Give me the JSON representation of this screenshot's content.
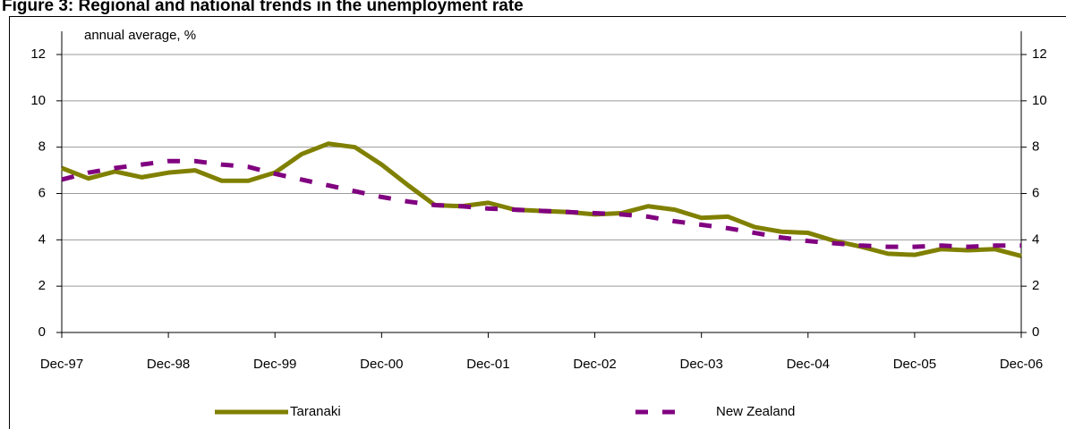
{
  "chart_data": {
    "type": "line",
    "title": "Figure 3: Regional and national trends in the unemployment rate",
    "y_label": "annual average, %",
    "categories": [
      "Dec-97",
      null,
      null,
      null,
      "Dec-98",
      null,
      null,
      null,
      "Dec-99",
      null,
      null,
      null,
      "Dec-00",
      null,
      null,
      null,
      "Dec-01",
      null,
      null,
      null,
      "Dec-02",
      null,
      null,
      null,
      "Dec-03",
      null,
      null,
      null,
      "Dec-04",
      null,
      null,
      null,
      "Dec-05",
      null,
      null,
      null,
      "Dec-06"
    ],
    "series": [
      {
        "name": "Taranaki",
        "color": "#808000",
        "dash": false,
        "values": [
          7.1,
          6.65,
          6.95,
          6.7,
          6.9,
          7.0,
          6.55,
          6.55,
          6.9,
          7.7,
          8.15,
          8.0,
          7.25,
          6.35,
          5.5,
          5.45,
          5.6,
          5.3,
          5.25,
          5.2,
          5.1,
          5.15,
          5.45,
          5.3,
          4.95,
          5.0,
          4.55,
          4.35,
          4.3,
          3.95,
          3.7,
          3.4,
          3.35,
          3.6,
          3.55,
          3.6,
          3.3
        ]
      },
      {
        "name": "New Zealand",
        "color": "#800080",
        "dash": true,
        "values": [
          6.6,
          6.9,
          7.1,
          7.25,
          7.4,
          7.4,
          7.25,
          7.15,
          6.85,
          6.6,
          6.35,
          6.1,
          5.85,
          5.65,
          5.5,
          5.45,
          5.35,
          5.3,
          5.25,
          5.2,
          5.15,
          5.1,
          5.0,
          4.8,
          4.65,
          4.5,
          4.3,
          4.1,
          3.95,
          3.85,
          3.75,
          3.7,
          3.7,
          3.75,
          3.7,
          3.75,
          3.75
        ]
      }
    ],
    "ylim": [
      0,
      12
    ],
    "yticks": [
      0,
      2,
      4,
      6,
      8,
      10,
      12
    ],
    "y2lim": [
      0,
      12
    ],
    "y2ticks": [
      0,
      2,
      4,
      6,
      8,
      10,
      12
    ],
    "grid": true,
    "legend": "bottom"
  }
}
